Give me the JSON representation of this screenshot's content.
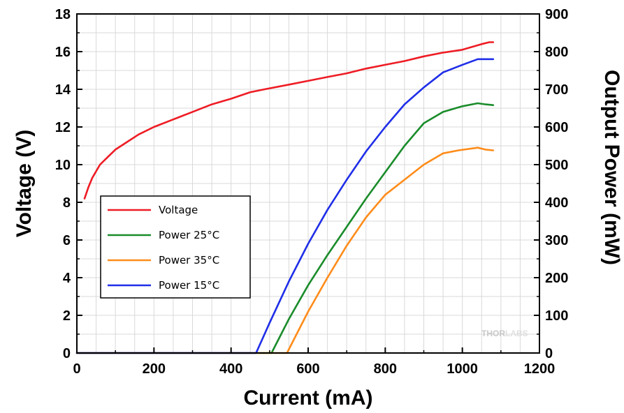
{
  "chart_data": {
    "type": "line",
    "xlabel": "Current (mA)",
    "ylabel": "Voltage (V)",
    "ylabel_right": "Output Power (mW)",
    "xlim": [
      0,
      1200
    ],
    "ylim": [
      0,
      18
    ],
    "ylim_right": [
      0,
      900
    ],
    "x_ticks": [
      "0",
      "200",
      "400",
      "600",
      "800",
      "1000",
      "1200"
    ],
    "y_ticks": [
      "0",
      "2",
      "4",
      "6",
      "8",
      "10",
      "12",
      "14",
      "16",
      "18"
    ],
    "y_right_ticks": [
      "0",
      "100",
      "200",
      "300",
      "400",
      "500",
      "600",
      "700",
      "800",
      "900"
    ],
    "grid": true,
    "legend_position": "center-left",
    "series": [
      {
        "name": "Voltage",
        "color": "#ee1c24",
        "axis": "left",
        "x": [
          20,
          30,
          40,
          60,
          80,
          100,
          130,
          160,
          200,
          250,
          300,
          350,
          400,
          450,
          500,
          550,
          600,
          650,
          700,
          750,
          800,
          850,
          900,
          950,
          1000,
          1050,
          1070,
          1080
        ],
        "y": [
          8.2,
          8.8,
          9.3,
          10.0,
          10.4,
          10.8,
          11.2,
          11.6,
          12.0,
          12.4,
          12.8,
          13.2,
          13.5,
          13.85,
          14.05,
          14.25,
          14.45,
          14.65,
          14.85,
          15.1,
          15.3,
          15.5,
          15.75,
          15.95,
          16.1,
          16.4,
          16.5,
          16.5
        ]
      },
      {
        "name": "Power 25°C",
        "color": "#1a8c2a",
        "axis": "right",
        "x": [
          0,
          505,
          550,
          600,
          650,
          700,
          750,
          800,
          850,
          900,
          950,
          1000,
          1040,
          1060,
          1080
        ],
        "y": [
          0,
          0,
          90,
          180,
          260,
          335,
          410,
          480,
          550,
          610,
          640,
          655,
          663,
          660,
          658
        ]
      },
      {
        "name": "Power 35°C",
        "color": "#ff8c1a",
        "axis": "right",
        "x": [
          0,
          545,
          600,
          650,
          700,
          750,
          800,
          850,
          900,
          950,
          990,
          1040,
          1060,
          1080
        ],
        "y": [
          0,
          0,
          110,
          200,
          285,
          360,
          420,
          460,
          500,
          530,
          538,
          545,
          540,
          538
        ]
      },
      {
        "name": "Power 15°C",
        "color": "#1f2ee8",
        "axis": "right",
        "x": [
          0,
          465,
          500,
          550,
          600,
          650,
          700,
          750,
          800,
          850,
          900,
          950,
          1000,
          1040,
          1060,
          1080
        ],
        "y": [
          0,
          0,
          80,
          190,
          290,
          380,
          460,
          535,
          600,
          660,
          705,
          745,
          765,
          780,
          780,
          780
        ]
      }
    ]
  },
  "watermark": {
    "text_a": "THOR",
    "text_b": "LABS"
  }
}
